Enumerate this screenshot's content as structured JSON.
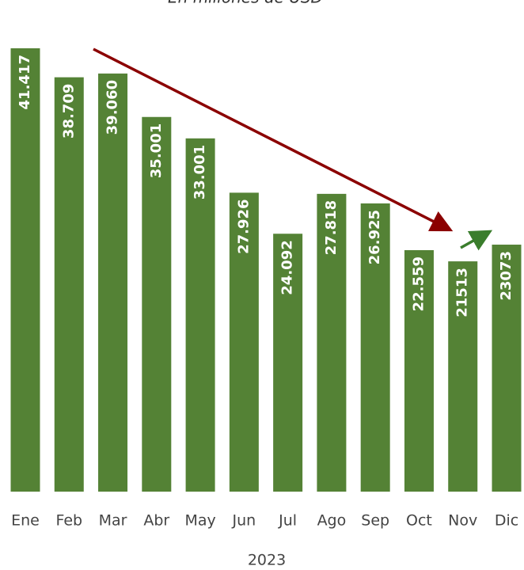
{
  "chart_data": {
    "type": "bar",
    "subtitle": "En millones de USD",
    "x_label": "2023",
    "categories": [
      "Ene",
      "Feb",
      "Mar",
      "Abr",
      "May",
      "Jun",
      "Jul",
      "Ago",
      "Sep",
      "Oct",
      "Nov",
      "Dic"
    ],
    "values": [
      41417,
      38709,
      39060,
      35001,
      33001,
      27926,
      24092,
      27818,
      26925,
      22559,
      21513,
      23073
    ],
    "value_labels": [
      "41.417",
      "38.709",
      "39.060",
      "35.001",
      "33.001",
      "27.926",
      "24.092",
      "27.818",
      "26.925",
      "22.559",
      "21513",
      "23073"
    ],
    "color": "#548235"
  }
}
